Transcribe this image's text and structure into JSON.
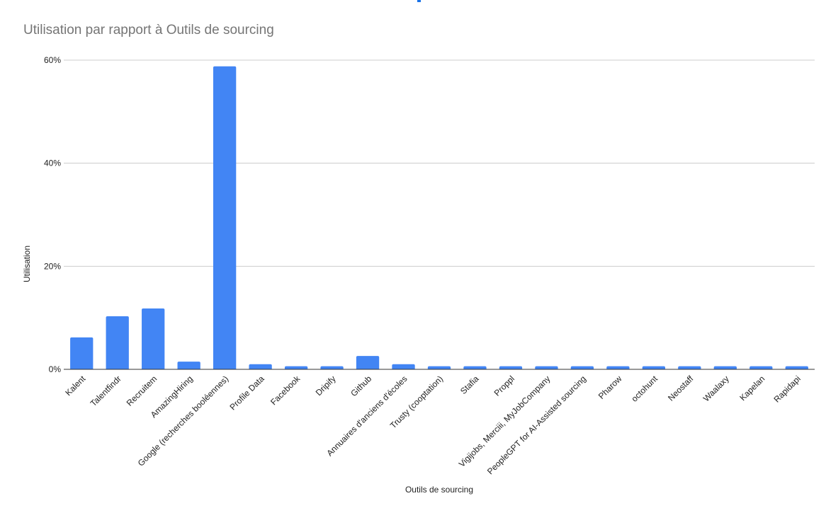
{
  "chart_data": {
    "type": "bar",
    "title": "Utilisation par rapport à Outils de sourcing",
    "xlabel": "Outils de sourcing",
    "ylabel": "Utilisation",
    "ylim": [
      0,
      60
    ],
    "yticks": [
      "0%",
      "20%",
      "40%",
      "60%"
    ],
    "ytick_values": [
      0,
      20,
      40,
      60
    ],
    "grid": true,
    "legend": "none",
    "categories": [
      "Kalent",
      "Talentfindr",
      "Recruitem",
      "AmazingHiring",
      "Google (recherches booléennes)",
      "Profile Data",
      "Facebook",
      "Dripify",
      "Github",
      "Annuaires d'anciens d'écoles",
      "Trusty (cooptation)",
      "Stafia",
      "Proppl",
      "Vigijobs, Merciii, MyJobCompany",
      "PeopleGPT for AI-Assisted sourcing",
      "Pharow",
      "octohunt",
      "Neostaff",
      "Waalaxy",
      "Kapelan",
      "Rapidapi"
    ],
    "values": [
      6.2,
      10.3,
      11.8,
      1.5,
      58.8,
      1.0,
      0.6,
      0.6,
      2.6,
      1.0,
      0.6,
      0.6,
      0.6,
      0.6,
      0.6,
      0.6,
      0.6,
      0.6,
      0.6,
      0.6,
      0.6
    ],
    "colors": {
      "bar": "#4285f4",
      "grid": "#cccccc",
      "axis": "#333333",
      "title": "#757575",
      "text": "#222222"
    }
  }
}
